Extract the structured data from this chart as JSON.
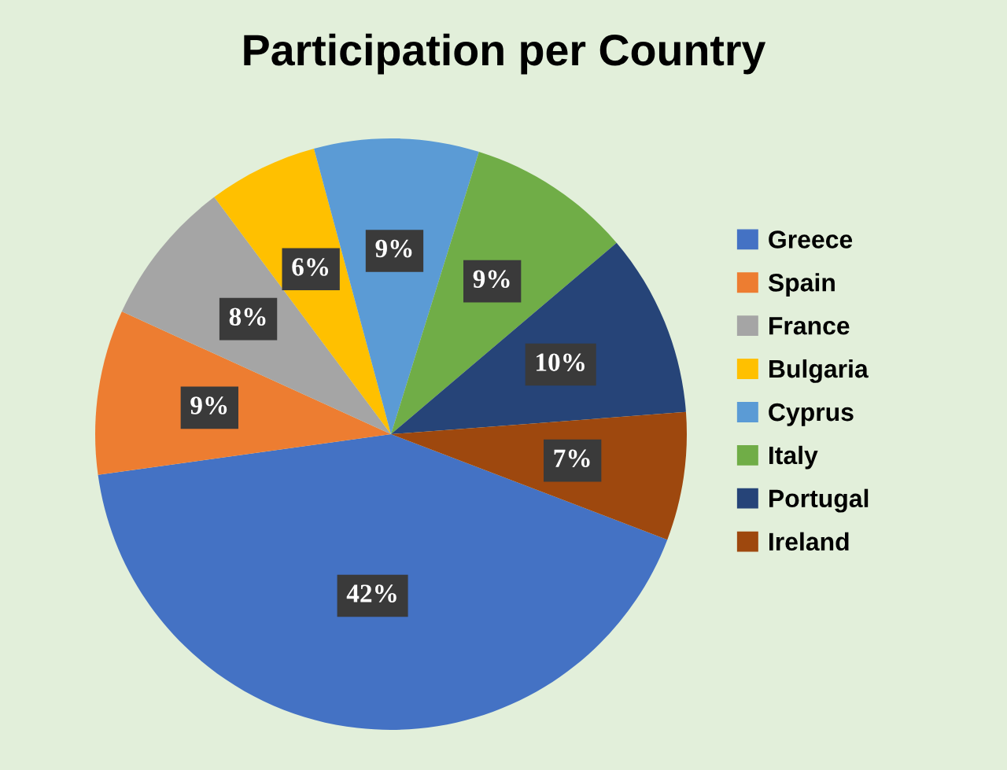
{
  "chart_data": {
    "type": "pie",
    "title": "Participation per Country",
    "categories": [
      "Greece",
      "Spain",
      "France",
      "Bulgaria",
      "Cyprus",
      "Italy",
      "Portugal",
      "Ireland"
    ],
    "values": [
      42,
      9,
      8,
      6,
      9,
      9,
      10,
      7
    ],
    "value_labels": [
      "42%",
      "9%",
      "8%",
      "6%",
      "9%",
      "9%",
      "10%",
      "7%"
    ],
    "colors": [
      "#4472c4",
      "#ed7d31",
      "#a5a5a5",
      "#ffc000",
      "#5b9bd5",
      "#70ad47",
      "#264478",
      "#9e480e"
    ],
    "legend": "right"
  }
}
